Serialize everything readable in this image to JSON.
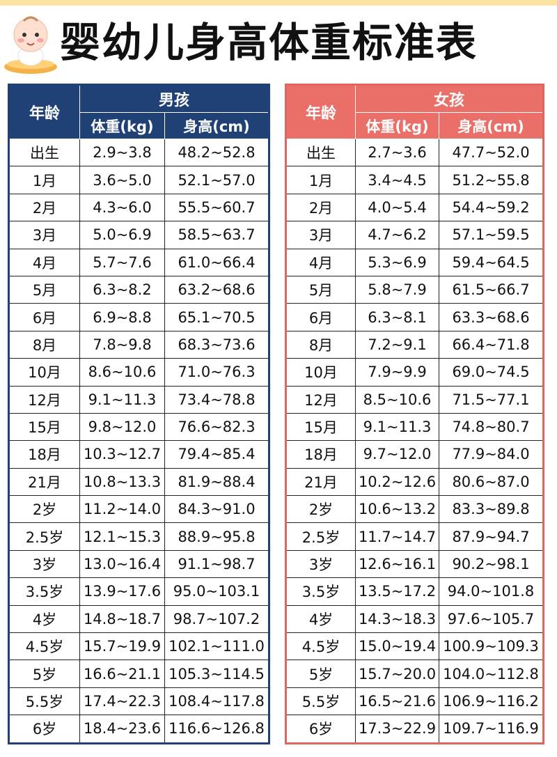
{
  "title": "婴幼儿身高体重标准表",
  "colors": {
    "boys_header": "#1f4176",
    "girls_header": "#ea6f69",
    "top_bar": "#fbe3a6"
  },
  "icons": {
    "mascot": "baby-icon"
  },
  "boys": {
    "group_label": "男孩",
    "age_label": "年龄",
    "weight_label": "体重(kg)",
    "height_label": "身高(cm)",
    "rows": [
      [
        "出生",
        "2.9~3.8",
        "48.2~52.8"
      ],
      [
        "1月",
        "3.6~5.0",
        "52.1~57.0"
      ],
      [
        "2月",
        "4.3~6.0",
        "55.5~60.7"
      ],
      [
        "3月",
        "5.0~6.9",
        "58.5~63.7"
      ],
      [
        "4月",
        "5.7~7.6",
        "61.0~66.4"
      ],
      [
        "5月",
        "6.3~8.2",
        "63.2~68.6"
      ],
      [
        "6月",
        "6.9~8.8",
        "65.1~70.5"
      ],
      [
        "8月",
        "7.8~9.8",
        "68.3~73.6"
      ],
      [
        "10月",
        "8.6~10.6",
        "71.0~76.3"
      ],
      [
        "12月",
        "9.1~11.3",
        "73.4~78.8"
      ],
      [
        "15月",
        "9.8~12.0",
        "76.6~82.3"
      ],
      [
        "18月",
        "10.3~12.7",
        "79.4~85.4"
      ],
      [
        "21月",
        "10.8~13.3",
        "81.9~88.4"
      ],
      [
        "2岁",
        "11.2~14.0",
        "84.3~91.0"
      ],
      [
        "2.5岁",
        "12.1~15.3",
        "88.9~95.8"
      ],
      [
        "3岁",
        "13.0~16.4",
        "91.1~98.7"
      ],
      [
        "3.5岁",
        "13.9~17.6",
        "95.0~103.1"
      ],
      [
        "4岁",
        "14.8~18.7",
        "98.7~107.2"
      ],
      [
        "4.5岁",
        "15.7~19.9",
        "102.1~111.0"
      ],
      [
        "5岁",
        "16.6~21.1",
        "105.3~114.5"
      ],
      [
        "5.5岁",
        "17.4~22.3",
        "108.4~117.8"
      ],
      [
        "6岁",
        "18.4~23.6",
        "116.6~126.8"
      ]
    ]
  },
  "girls": {
    "group_label": "女孩",
    "age_label": "年龄",
    "weight_label": "体重(kg)",
    "height_label": "身高(cm)",
    "rows": [
      [
        "出生",
        "2.7~3.6",
        "47.7~52.0"
      ],
      [
        "1月",
        "3.4~4.5",
        "51.2~55.8"
      ],
      [
        "2月",
        "4.0~5.4",
        "54.4~59.2"
      ],
      [
        "3月",
        "4.7~6.2",
        "57.1~59.5"
      ],
      [
        "4月",
        "5.3~6.9",
        "59.4~64.5"
      ],
      [
        "5月",
        "5.8~7.9",
        "61.5~66.7"
      ],
      [
        "6月",
        "6.3~8.1",
        "63.3~68.6"
      ],
      [
        "8月",
        "7.2~9.1",
        "66.4~71.8"
      ],
      [
        "10月",
        "7.9~9.9",
        "69.0~74.5"
      ],
      [
        "12月",
        "8.5~10.6",
        "71.5~77.1"
      ],
      [
        "15月",
        "9.1~11.3",
        "74.8~80.7"
      ],
      [
        "18月",
        "9.7~12.0",
        "77.9~84.0"
      ],
      [
        "21月",
        "10.2~12.6",
        "80.6~87.0"
      ],
      [
        "2岁",
        "10.6~13.2",
        "83.3~89.8"
      ],
      [
        "2.5岁",
        "11.7~14.7",
        "87.9~94.7"
      ],
      [
        "3岁",
        "12.6~16.1",
        "90.2~98.1"
      ],
      [
        "3.5岁",
        "13.5~17.2",
        "94.0~101.8"
      ],
      [
        "4岁",
        "14.3~18.3",
        "97.6~105.7"
      ],
      [
        "4.5岁",
        "15.0~19.4",
        "100.9~109.3"
      ],
      [
        "5岁",
        "15.7~20.0",
        "104.0~112.8"
      ],
      [
        "5.5岁",
        "16.5~21.6",
        "106.9~116.2"
      ],
      [
        "6岁",
        "17.3~22.9",
        "109.7~116.9"
      ]
    ]
  }
}
